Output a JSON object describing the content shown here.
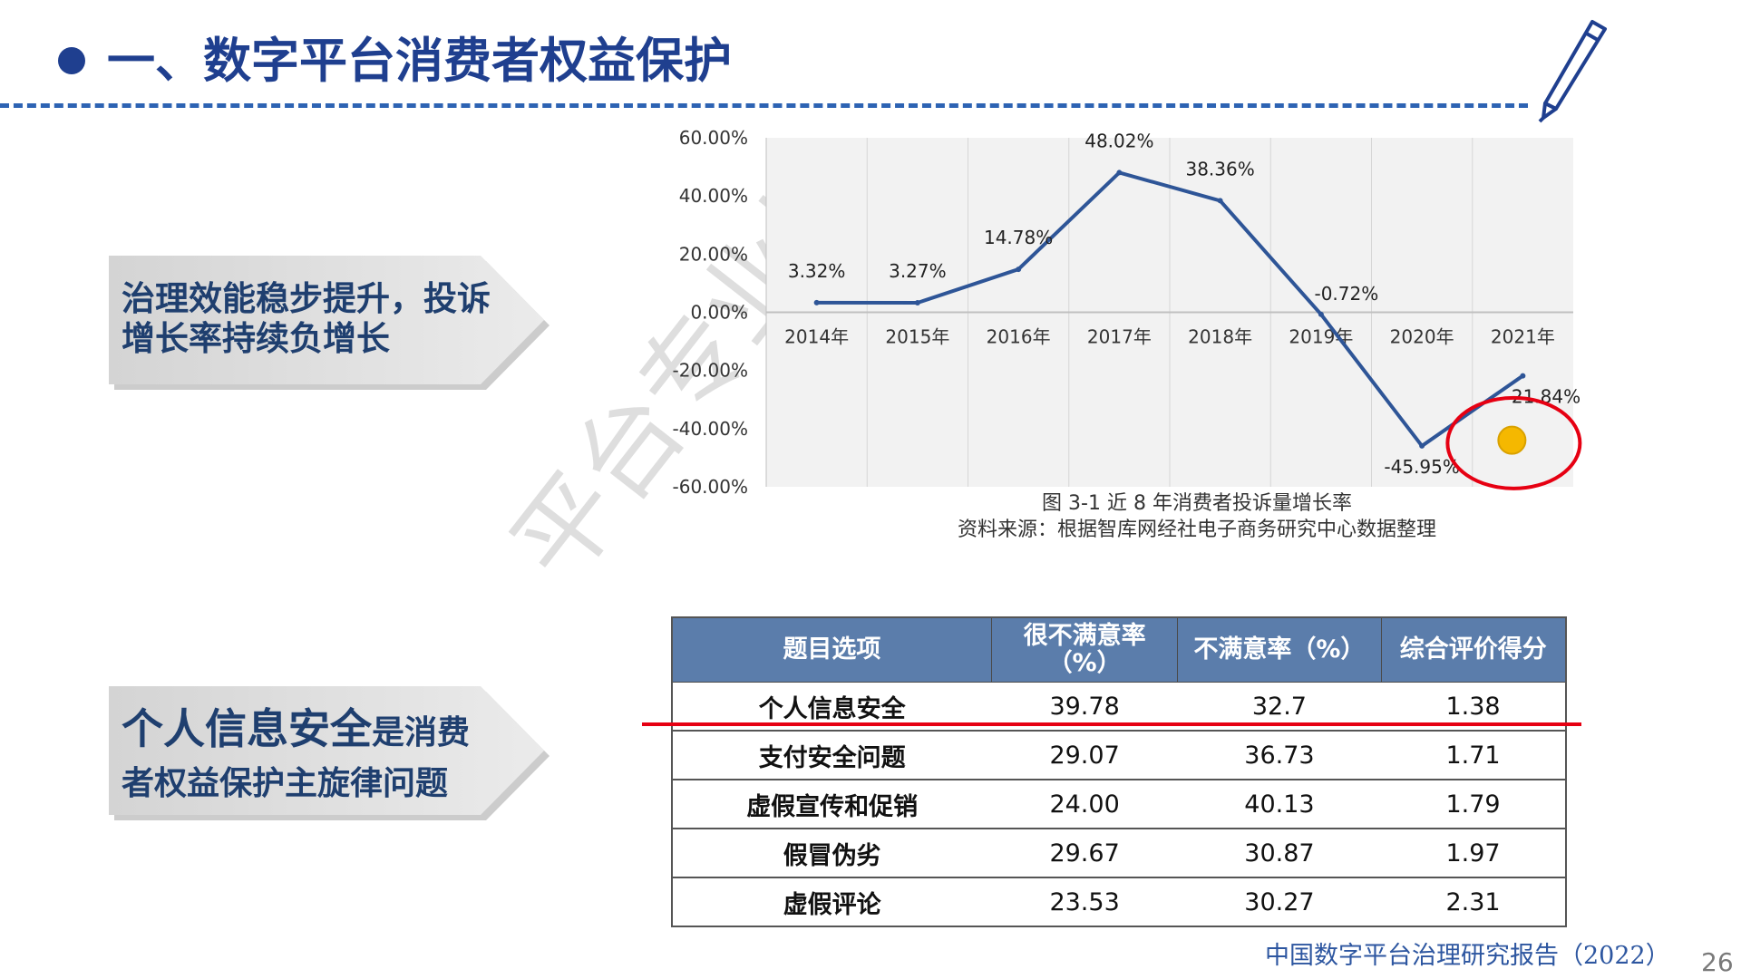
{
  "header": {
    "title": "一、数字平台消费者权益保护",
    "accent_color": "#1f3f8f",
    "icon": "pencil-icon"
  },
  "callouts": [
    {
      "lines": [
        "治理效能稳步提升，投诉",
        "增长率持续负增长"
      ]
    },
    {
      "line1_big": "个人信息安全",
      "line1_small": "是消费",
      "line2": "者权益保护主旋律问题"
    }
  ],
  "chart_data": {
    "type": "line",
    "categories": [
      "2014年",
      "2015年",
      "2016年",
      "2017年",
      "2018年",
      "2019年",
      "2020年",
      "2021年"
    ],
    "series": [
      {
        "values": [
          3.32,
          3.27,
          14.78,
          48.02,
          38.36,
          -0.72,
          -45.95,
          -21.84
        ],
        "labels": [
          "3.32%",
          "3.27%",
          "14.78%",
          "48.02%",
          "38.36%",
          "-0.72%",
          "-45.95%",
          "-21.84%"
        ],
        "color": "#2e5597"
      }
    ],
    "y_ticks": [
      "60.00%",
      "40.00%",
      "20.00%",
      "0.00%",
      "-20.00%",
      "-40.00%",
      "-60.00%"
    ],
    "ylim": [
      -60,
      60
    ],
    "grid": "vertical",
    "highlight": {
      "category": "2021年",
      "color": "#e60012",
      "marker_color": "#f5b800"
    },
    "caption": "图 3-1 近 8 年消费者投诉量增长率",
    "source": "资料来源：根据智库网经社电子商务研究中心数据整理"
  },
  "table": {
    "headers": [
      "题目选项",
      "很不满意率（%）",
      "不满意率（%）",
      "综合评价得分"
    ],
    "rows": [
      [
        "个人信息安全",
        "39.78",
        "32.7",
        "1.38"
      ],
      [
        "支付安全问题",
        "29.07",
        "36.73",
        "1.71"
      ],
      [
        "虚假宣传和促销",
        "24.00",
        "40.13",
        "1.79"
      ],
      [
        "假冒伪劣",
        "29.67",
        "30.87",
        "1.97"
      ],
      [
        "虚假评论",
        "23.53",
        "30.27",
        "2.31"
      ]
    ],
    "header_color": "#5b7dab",
    "highlight_row_color": "#e60012"
  },
  "watermark": "平台专业报",
  "footer": {
    "report": "中国数字平台治理研究报告（2022）",
    "page": "26"
  }
}
